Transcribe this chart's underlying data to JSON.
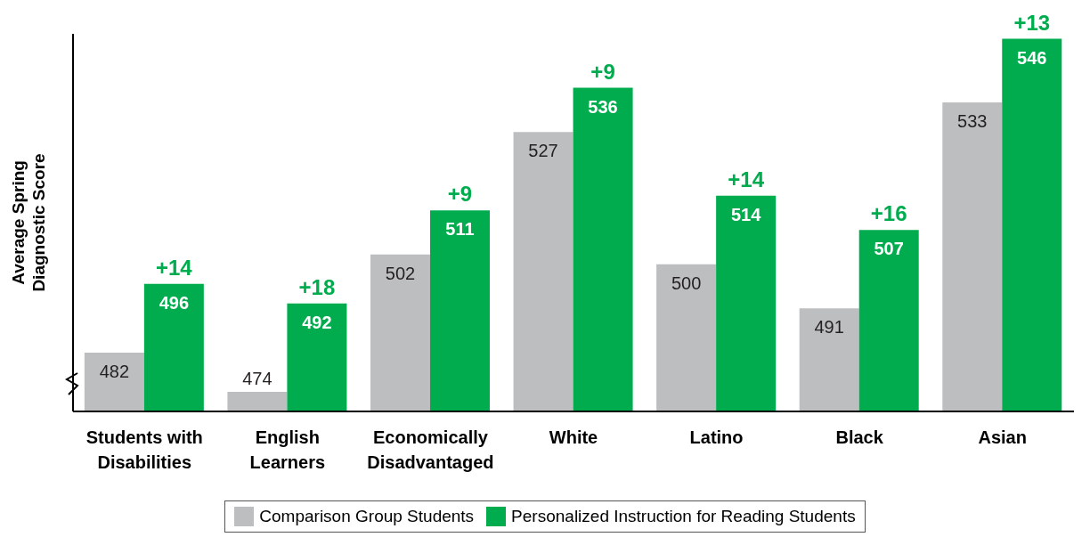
{
  "chart_data": {
    "type": "bar",
    "ylabel": "Average Spring Diagnostic Score",
    "categories": [
      "Students with Disabilities",
      "English Learners",
      "Economically Disadvantaged",
      "White",
      "Latino",
      "Black",
      "Asian"
    ],
    "series": [
      {
        "name": "Comparison Group Students",
        "color": "#bcbec0",
        "values": [
          482,
          474,
          502,
          527,
          500,
          491,
          533
        ]
      },
      {
        "name": "Personalized Instruction for Reading Students",
        "color": "#00ac4e",
        "values": [
          496,
          492,
          511,
          536,
          514,
          507,
          546
        ]
      }
    ],
    "ylim": [
      470,
      547
    ],
    "tick_labels": "x",
    "data_labels": true,
    "legend": "bottom",
    "grid": false,
    "annotations": [
      {
        "text": "+14",
        "x": "Students with Disabilities",
        "y": 496
      },
      {
        "text": "+18",
        "x": "English Learners",
        "y": 492
      },
      {
        "text": "+9",
        "x": "Economically Disadvantaged",
        "y": 511
      },
      {
        "text": "+9",
        "x": "White",
        "y": 536
      },
      {
        "text": "+14",
        "x": "Latino",
        "y": 514
      },
      {
        "text": "+16",
        "x": "Black",
        "y": 507
      },
      {
        "text": "+13",
        "x": "Asian",
        "y": 546
      }
    ]
  }
}
